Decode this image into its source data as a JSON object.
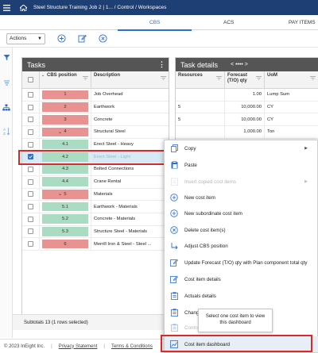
{
  "topbar": {
    "breadcrumb": "Steel Structure Training Job 2 | 1...  /  Control  /  Workspaces"
  },
  "tabs": [
    {
      "label": "CBS",
      "active": true
    },
    {
      "label": "ACS",
      "active": false
    },
    {
      "label": "PAY ITEMS",
      "active": false
    }
  ],
  "toolbar": {
    "actions_label": "Actions",
    "icons": [
      "add-circle-icon",
      "edit-icon",
      "cancel-circle-icon"
    ]
  },
  "tasks_panel": {
    "title": "Tasks",
    "columns": {
      "cbs": "CBS position",
      "description": "Description"
    },
    "rows": [
      {
        "cbs": "1",
        "description": "Job Overhead",
        "color": "red",
        "expandable": false,
        "checked": false,
        "selected": false
      },
      {
        "cbs": "2",
        "description": "Earthwork",
        "color": "red",
        "expandable": false,
        "checked": false,
        "selected": false
      },
      {
        "cbs": "3",
        "description": "Concrete",
        "color": "red",
        "expandable": false,
        "checked": false,
        "selected": false
      },
      {
        "cbs": "4",
        "description": "Structural Steel",
        "color": "red",
        "expandable": true,
        "checked": false,
        "selected": false
      },
      {
        "cbs": "4.1",
        "description": "Erect Steel - Heavy",
        "color": "green",
        "expandable": false,
        "checked": false,
        "selected": false
      },
      {
        "cbs": "4.2",
        "description": "Erect Steel - Light",
        "color": "green",
        "expandable": false,
        "checked": true,
        "selected": true
      },
      {
        "cbs": "4.3",
        "description": "Bolted Connections",
        "color": "green",
        "expandable": false,
        "checked": false,
        "selected": false
      },
      {
        "cbs": "4.4",
        "description": "Crane Rental",
        "color": "green",
        "expandable": false,
        "checked": false,
        "selected": false
      },
      {
        "cbs": "5",
        "description": "Materials",
        "color": "red",
        "expandable": true,
        "checked": false,
        "selected": false
      },
      {
        "cbs": "5.1",
        "description": "Earthwork - Materials",
        "color": "green",
        "expandable": false,
        "checked": false,
        "selected": false
      },
      {
        "cbs": "5.2",
        "description": "Concrete - Materials",
        "color": "green",
        "expandable": false,
        "checked": false,
        "selected": false
      },
      {
        "cbs": "5.3",
        "description": "Structure Steel - Materials",
        "color": "green",
        "expandable": false,
        "checked": false,
        "selected": false
      },
      {
        "cbs": "6",
        "description": "Merrill Iron & Steel - Steel ...",
        "color": "red",
        "expandable": false,
        "checked": false,
        "selected": false
      }
    ]
  },
  "details_panel": {
    "title": "Task details",
    "pager": "< •••• >",
    "columns": {
      "resources": "Resources",
      "forecast": "Forecast (T/O) qty",
      "uom": "UoM"
    },
    "rows": [
      {
        "resources": "",
        "forecast": "1.00",
        "uom": "Lump Sum"
      },
      {
        "resources": "5",
        "forecast": "10,000.00",
        "uom": "CY"
      },
      {
        "resources": "5",
        "forecast": "10,000.00",
        "uom": "CY"
      },
      {
        "resources": "",
        "forecast": "1,000.00",
        "uom": "Ton"
      }
    ],
    "row_edge_value": "2"
  },
  "subtotal": "Subtotals  13  (1 rows selected)",
  "footer": {
    "copyright": "© 2023 InEight Inc.",
    "privacy": "Privacy Statement",
    "terms": "Terms & Conditions"
  },
  "context_menu": {
    "items": [
      {
        "label": "Copy",
        "icon": "copy-icon",
        "disabled": false,
        "submenu": true
      },
      {
        "label": "Paste",
        "icon": "paste-icon",
        "disabled": false,
        "submenu": false
      },
      {
        "label": "Insert copied cost items",
        "icon": "insert-icon",
        "disabled": true,
        "submenu": true
      },
      {
        "label": "New cost item",
        "icon": "add-circle-icon",
        "disabled": false,
        "submenu": false
      },
      {
        "label": "New subordinate cost item",
        "icon": "add-circle-icon",
        "disabled": false,
        "submenu": false
      },
      {
        "label": "Delete cost item(s)",
        "icon": "cancel-circle-icon",
        "disabled": false,
        "submenu": false
      },
      {
        "label": "Adjust CBS position",
        "icon": "adjust-arrow-icon",
        "disabled": false,
        "submenu": false
      },
      {
        "label": "Update Forecast (T/O) qty with Plan component total qty",
        "icon": "edit-icon",
        "disabled": false,
        "submenu": false
      },
      {
        "label": "Cost item details",
        "icon": "edit-icon",
        "disabled": false,
        "submenu": false
      },
      {
        "label": "Actuals details",
        "icon": "clipboard-icon",
        "disabled": false,
        "submenu": false
      },
      {
        "label": "Change o",
        "icon": "clipboard-icon",
        "disabled": false,
        "submenu": false
      },
      {
        "label": "Contract",
        "icon": "clipboard-icon",
        "disabled": true,
        "submenu": false
      },
      {
        "label": "Cost item dashboard",
        "icon": "dashboard-icon",
        "disabled": false,
        "submenu": false
      }
    ]
  },
  "tooltip": "Select one cost item to view this dashboard",
  "colors": {
    "topbar": "#1e3f73",
    "accent": "#2a6fd6",
    "chip_red": "#e89292",
    "chip_green": "#a9dcc3",
    "highlight": "#d62b2b"
  }
}
